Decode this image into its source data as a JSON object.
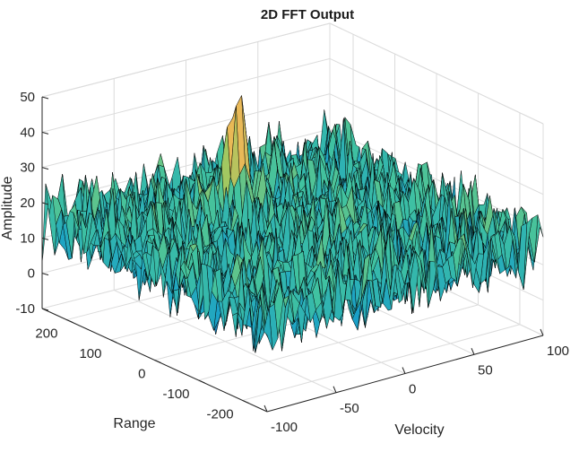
{
  "chart_data": {
    "type": "surface",
    "title": "2D FFT Output",
    "xlabel": "Velocity",
    "ylabel": "Range",
    "zlabel": "Amplitude",
    "xlim": [
      -100,
      100
    ],
    "ylim": [
      -256,
      256
    ],
    "zlim": [
      -10,
      50
    ],
    "x_ticks": [
      -100,
      -50,
      0,
      50,
      100
    ],
    "y_ticks": [
      -200,
      -100,
      0,
      100,
      200
    ],
    "z_ticks": [
      -10,
      0,
      10,
      20,
      30,
      40,
      50
    ],
    "grid": true,
    "noise_floor_db": 15,
    "noise_spread_db": 7,
    "peak": {
      "velocity": -7,
      "range": 110,
      "amplitude": 47
    },
    "colormap": [
      "#183f9e",
      "#1aa0c8",
      "#40c2a0",
      "#a3c860",
      "#e8b85a",
      "#f0c040"
    ]
  }
}
